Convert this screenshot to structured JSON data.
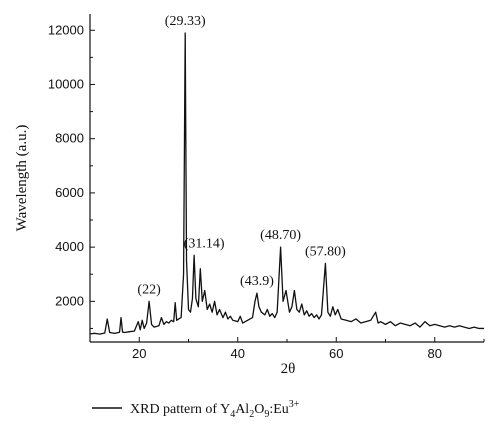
{
  "chart_data": {
    "type": "line",
    "title": "",
    "xlabel": "2θ",
    "ylabel": "Wavelength (a.u.)",
    "xlim": [
      10,
      90
    ],
    "ylim": [
      500,
      12600
    ],
    "x_ticks": [
      20,
      40,
      60,
      80
    ],
    "y_ticks": [
      2000,
      4000,
      6000,
      8000,
      10000,
      12000
    ],
    "grid": false,
    "legend_position": "bottom",
    "peak_labels": [
      "(29.33)",
      "(31.14)",
      "(22)",
      "(43.9)",
      "(48.70)",
      "(57.80)"
    ],
    "series": [
      {
        "name": "XRD pattern of Y4Al2O9:Eu3+",
        "color": "#111111",
        "x": [
          10,
          11,
          12,
          13,
          13.5,
          14,
          15,
          16,
          16.3,
          16.6,
          17,
          18,
          19,
          19.8,
          20.2,
          20.6,
          21,
          21.5,
          22,
          22.5,
          23,
          24,
          24.5,
          25,
          25.5,
          26,
          26.5,
          27,
          27.3,
          27.6,
          28,
          28.5,
          29.0,
          29.33,
          29.6,
          30,
          30.4,
          30.8,
          31.14,
          31.5,
          32.0,
          32.4,
          32.8,
          33.3,
          33.8,
          34.3,
          34.8,
          35.3,
          35.8,
          36.3,
          37,
          37.5,
          38,
          38.5,
          39,
          40,
          40.5,
          41,
          42,
          43,
          43.5,
          43.9,
          44.3,
          44.8,
          45.5,
          46,
          46.5,
          47,
          47.5,
          48,
          48.7,
          49.2,
          49.8,
          50.5,
          51,
          51.5,
          52,
          52.5,
          53,
          53.5,
          54,
          54.5,
          55,
          55.5,
          56,
          56.5,
          57,
          57.8,
          58.3,
          58.8,
          59.3,
          59.8,
          60.3,
          61,
          62,
          63,
          64,
          65,
          66,
          67,
          68,
          68.5,
          69,
          70,
          71,
          72,
          73,
          74,
          75,
          76,
          77,
          78,
          79,
          80,
          81,
          82,
          83,
          84,
          85,
          86,
          87,
          88,
          89,
          90
        ],
        "y": [
          800,
          820,
          790,
          830,
          1350,
          850,
          820,
          860,
          1400,
          870,
          850,
          880,
          900,
          1250,
          950,
          1300,
          1000,
          1200,
          2000,
          1150,
          1050,
          1100,
          1400,
          1150,
          1250,
          1200,
          1300,
          1250,
          1950,
          1300,
          1350,
          1400,
          3000,
          11900,
          3500,
          1700,
          1600,
          2100,
          3700,
          2100,
          1800,
          3200,
          2000,
          2400,
          1700,
          1900,
          1600,
          2000,
          1500,
          1700,
          1400,
          1600,
          1350,
          1450,
          1300,
          1250,
          1450,
          1200,
          1300,
          1400,
          2000,
          2300,
          1800,
          1600,
          1500,
          1700,
          1450,
          1550,
          1400,
          1600,
          4000,
          2000,
          2400,
          1600,
          1800,
          2400,
          1700,
          1600,
          1900,
          1500,
          1650,
          1450,
          1550,
          1400,
          1500,
          1350,
          1500,
          3400,
          1600,
          1450,
          1800,
          1500,
          1700,
          1350,
          1300,
          1250,
          1350,
          1200,
          1250,
          1300,
          1600,
          1200,
          1250,
          1150,
          1250,
          1100,
          1200,
          1150,
          1100,
          1200,
          1050,
          1250,
          1100,
          1150,
          1100,
          1050,
          1100,
          1050,
          1100,
          1050,
          1000,
          1050,
          1000,
          1000
        ]
      }
    ]
  },
  "legend": {
    "prefix": "XRD pattern of Y",
    "sub1": "4",
    "mid1": "Al",
    "sub2": "2",
    "mid2": "O",
    "sub3": "9",
    "mid3": ":Eu",
    "sup": "3+"
  }
}
